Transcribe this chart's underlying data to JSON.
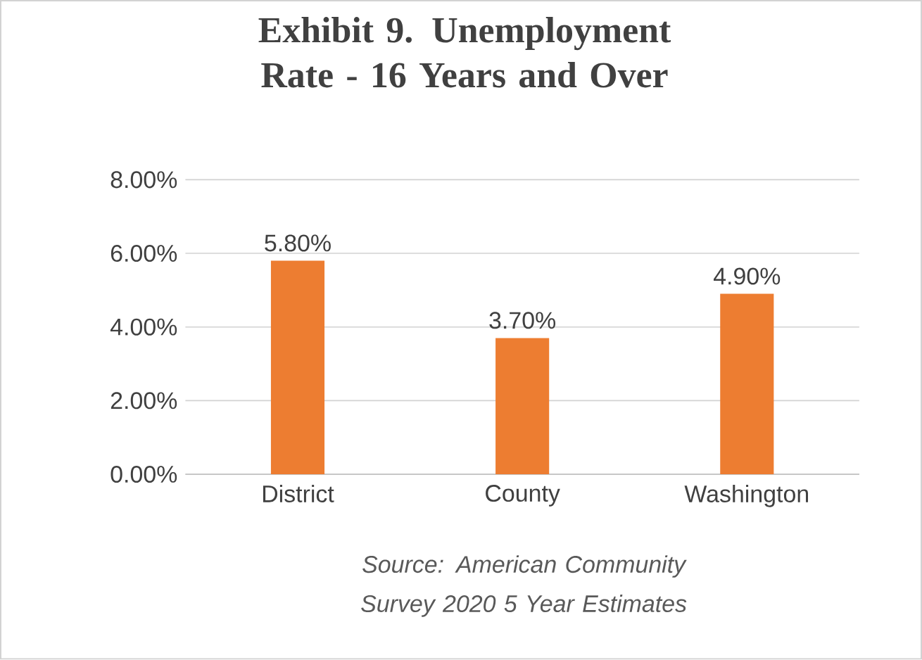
{
  "chart_data": {
    "type": "bar",
    "title": "Exhibit 9. Unemployment Rate - 16 Years and Over",
    "categories": [
      "District",
      "County",
      "Washington"
    ],
    "values": [
      5.8,
      3.7,
      4.9
    ],
    "value_labels": [
      "5.80%",
      "3.70%",
      "4.90%"
    ],
    "color": "#ed7d31",
    "ylim": [
      0,
      8
    ],
    "yticks": [
      {
        "value": 0,
        "label": "0.00%"
      },
      {
        "value": 2,
        "label": "2.00%"
      },
      {
        "value": 4,
        "label": "4.00%"
      },
      {
        "value": 6,
        "label": "6.00%"
      },
      {
        "value": 8,
        "label": "8.00%"
      }
    ],
    "grid": "y",
    "annotations": [
      "Source: American Community Survey 2020 5 Year Estimates"
    ]
  }
}
